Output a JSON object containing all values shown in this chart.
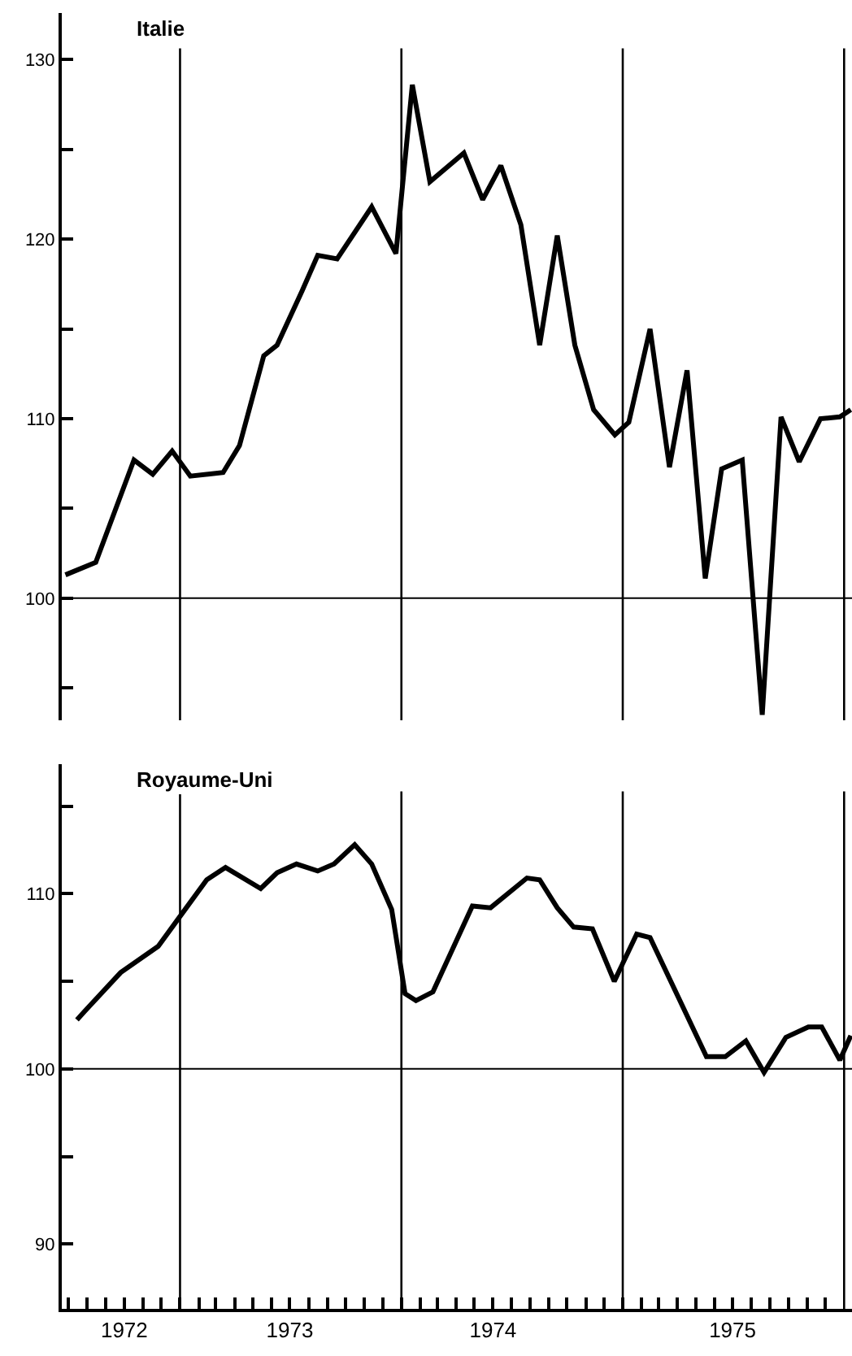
{
  "chart_data": [
    {
      "type": "line",
      "title": "Italie",
      "tick_labels": "y",
      "series": [
        {
          "color": "#000000",
          "x": [
            "1972-06-26",
            "1972-08-15",
            "1972-10-17",
            "1972-11-17",
            "1972-12-19",
            "1973-01-18",
            "1973-03-13",
            "1973-04-09",
            "1973-05-19",
            "1973-06-10",
            "1973-07-21",
            "1973-08-16",
            "1973-09-17",
            "1973-11-13",
            "1973-12-23",
            "1974-01-19",
            "1974-02-17",
            "1974-04-14",
            "1974-05-15",
            "1974-06-14",
            "1974-07-17",
            "1974-08-17",
            "1974-09-15",
            "1974-10-14",
            "1974-11-14",
            "1974-12-19",
            "1975-01-11",
            "1975-02-15",
            "1975-03-19",
            "1975-04-17",
            "1975-05-17",
            "1975-06-13",
            "1975-07-17",
            "1975-08-19",
            "1975-09-19",
            "1975-10-19",
            "1975-11-23",
            "1975-12-25",
            "1976-01-12"
          ],
          "values": [
            101.3,
            102.0,
            107.7,
            106.9,
            108.2,
            106.8,
            107.0,
            108.5,
            113.5,
            114.1,
            117.1,
            119.1,
            118.9,
            121.8,
            119.2,
            128.6,
            123.2,
            124.8,
            122.2,
            124.1,
            120.8,
            114.1,
            120.2,
            114.1,
            110.5,
            109.1,
            109.8,
            115.0,
            107.3,
            112.7,
            101.1,
            107.2,
            107.7,
            93.5,
            110.1,
            107.6,
            110.0,
            110.1,
            110.5
          ]
        }
      ],
      "xlim": [
        "1972-06-20",
        "1976-01-14"
      ],
      "ylim": [
        93.2,
        132.6
      ],
      "yticks": [
        {
          "value": 95,
          "label": null
        },
        100,
        {
          "value": 105,
          "label": null
        },
        110,
        {
          "value": 115,
          "label": null
        },
        120,
        {
          "value": 125,
          "label": null
        },
        130
      ],
      "ref_lines": [
        {
          "axis": "y",
          "value": 100
        },
        {
          "axis": "x",
          "value": "1973-01-01"
        },
        {
          "axis": "x",
          "value": "1974-01-01"
        },
        {
          "axis": "x",
          "value": "1975-01-01"
        },
        {
          "axis": "x",
          "value": "1976-01-01"
        }
      ]
    },
    {
      "type": "line",
      "title": "Royaume-Uni",
      "series": [
        {
          "color": "#000000",
          "x": [
            "1972-07-15",
            "1972-07-28",
            "1972-09-25",
            "1972-11-26",
            "1973-01-05",
            "1973-02-14",
            "1973-03-17",
            "1973-05-14",
            "1973-06-10",
            "1973-07-12",
            "1973-08-16",
            "1973-09-12",
            "1973-10-16",
            "1973-11-13",
            "1973-12-16",
            "1974-01-07",
            "1974-01-25",
            "1974-02-22",
            "1974-04-28",
            "1974-05-28",
            "1974-07-27",
            "1974-08-17",
            "1974-09-15",
            "1974-10-12",
            "1974-11-12",
            "1974-12-18",
            "1975-01-24",
            "1975-02-15",
            "1975-05-19",
            "1975-06-19",
            "1975-07-23",
            "1975-08-22",
            "1975-09-27",
            "1975-11-03",
            "1975-11-25",
            "1975-12-25",
            "1976-01-12"
          ],
          "values": [
            102.8,
            103.3,
            105.5,
            107.0,
            108.9,
            110.8,
            111.5,
            110.3,
            111.2,
            111.7,
            111.3,
            111.7,
            112.8,
            111.7,
            109.1,
            104.3,
            103.9,
            104.4,
            109.3,
            109.2,
            110.9,
            110.8,
            109.2,
            108.1,
            108.0,
            105.0,
            107.7,
            107.5,
            100.7,
            100.7,
            101.6,
            99.8,
            101.8,
            102.4,
            102.4,
            100.5,
            101.9
          ]
        }
      ],
      "xlim": [
        "1972-06-20",
        "1976-01-14"
      ],
      "xticks": [
        {
          "value": "1972-07-01",
          "label": null
        },
        {
          "value": "1972-08-01",
          "label": null
        },
        {
          "value": "1972-09-01",
          "label": null
        },
        {
          "value": "1972-10-01",
          "label": "1972"
        },
        {
          "value": "1972-11-01",
          "label": null
        },
        {
          "value": "1972-12-01",
          "label": null
        },
        {
          "value": "1973-01-01",
          "label": null
        },
        {
          "value": "1973-02-01",
          "label": null
        },
        {
          "value": "1973-03-01",
          "label": null
        },
        {
          "value": "1973-04-01",
          "label": null
        },
        {
          "value": "1973-05-01",
          "label": null
        },
        {
          "value": "1973-06-01",
          "label": null
        },
        {
          "value": "1973-07-01",
          "label": "1973"
        },
        {
          "value": "1973-08-01",
          "label": null
        },
        {
          "value": "1973-09-01",
          "label": null
        },
        {
          "value": "1973-10-01",
          "label": null
        },
        {
          "value": "1973-11-01",
          "label": null
        },
        {
          "value": "1973-12-01",
          "label": null
        },
        {
          "value": "1974-01-01",
          "label": null
        },
        {
          "value": "1974-02-01",
          "label": null
        },
        {
          "value": "1974-03-01",
          "label": null
        },
        {
          "value": "1974-04-01",
          "label": null
        },
        {
          "value": "1974-05-01",
          "label": null
        },
        {
          "value": "1974-06-01",
          "label": "1974"
        },
        {
          "value": "1974-07-01",
          "label": null
        },
        {
          "value": "1974-08-01",
          "label": null
        },
        {
          "value": "1974-09-01",
          "label": null
        },
        {
          "value": "1974-10-01",
          "label": null
        },
        {
          "value": "1974-11-01",
          "label": null
        },
        {
          "value": "1974-12-01",
          "label": null
        },
        {
          "value": "1975-01-01",
          "label": null
        },
        {
          "value": "1975-02-01",
          "label": null
        },
        {
          "value": "1975-03-01",
          "label": null
        },
        {
          "value": "1975-04-01",
          "label": null
        },
        {
          "value": "1975-05-01",
          "label": null
        },
        {
          "value": "1975-06-01",
          "label": null
        },
        {
          "value": "1975-07-01",
          "label": "1975"
        },
        {
          "value": "1975-08-01",
          "label": null
        },
        {
          "value": "1975-09-01",
          "label": null
        },
        {
          "value": "1975-10-01",
          "label": null
        },
        {
          "value": "1975-11-01",
          "label": null
        },
        {
          "value": "1975-12-01",
          "label": null
        }
      ],
      "ylim": [
        86.3,
        117.4
      ],
      "yticks": [
        90,
        {
          "value": 95,
          "label": null
        },
        100,
        {
          "value": 105,
          "label": null
        },
        110,
        {
          "value": 115,
          "label": null
        }
      ],
      "ref_lines": [
        {
          "axis": "y",
          "value": 100
        },
        {
          "axis": "x",
          "value": "1973-01-01"
        },
        {
          "axis": "x",
          "value": "1974-01-01"
        },
        {
          "axis": "x",
          "value": "1975-01-01"
        },
        {
          "axis": "x",
          "value": "1976-01-01"
        }
      ]
    }
  ]
}
